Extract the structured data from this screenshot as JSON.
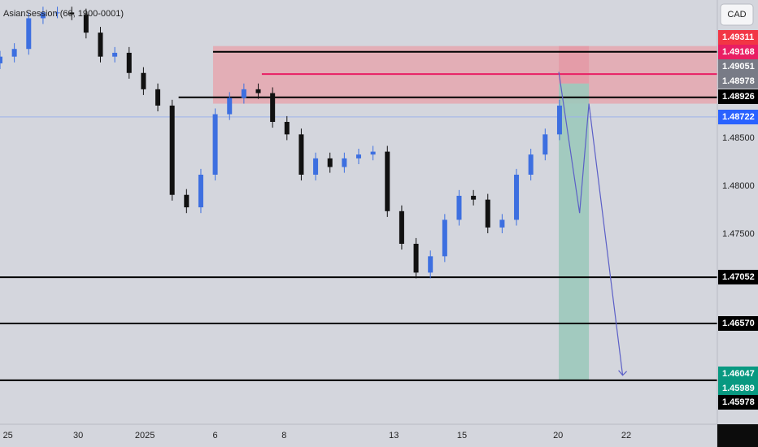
{
  "chart_data": {
    "type": "candlestick",
    "title": "AsianSession (60, 1900-0001)",
    "currency": "CAD",
    "x": [
      0,
      2,
      4,
      6,
      8,
      10,
      12,
      14,
      16,
      18,
      20,
      22,
      24,
      26,
      28,
      30,
      32,
      34,
      36,
      38,
      40,
      42,
      44,
      46,
      48,
      50,
      52,
      54,
      56,
      58,
      60,
      62,
      64,
      66,
      68,
      70,
      72,
      74,
      76,
      78
    ],
    "open": [
      1.4928,
      1.4935,
      1.4943,
      1.4975,
      1.4981,
      1.4981,
      1.4979,
      1.496,
      1.4935,
      1.4939,
      1.4918,
      1.4901,
      1.4884,
      1.4791,
      1.4778,
      1.4812,
      1.4875,
      1.4892,
      1.4901,
      1.4897,
      1.4867,
      1.4854,
      1.4812,
      1.4829,
      1.482,
      1.4829,
      1.4833,
      1.4836,
      1.4774,
      1.474,
      1.471,
      1.4727,
      1.4765,
      1.479,
      1.4786,
      1.4757,
      1.4765,
      1.4812,
      1.4833,
      1.4854
    ],
    "high": [
      1.4941,
      1.4949,
      1.4981,
      1.4987,
      1.4987,
      1.4987,
      1.4985,
      1.4966,
      1.4945,
      1.4945,
      1.4924,
      1.4907,
      1.489,
      1.4797,
      1.4818,
      1.4881,
      1.4898,
      1.4907,
      1.4907,
      1.4903,
      1.4873,
      1.486,
      1.4835,
      1.4835,
      1.4835,
      1.4839,
      1.4842,
      1.4842,
      1.478,
      1.4746,
      1.4733,
      1.4771,
      1.4796,
      1.4796,
      1.4792,
      1.4771,
      1.4818,
      1.4839,
      1.486,
      1.489
    ],
    "low": [
      1.4922,
      1.4929,
      1.4937,
      1.4969,
      1.4975,
      1.4973,
      1.4954,
      1.4929,
      1.4929,
      1.4912,
      1.4895,
      1.4878,
      1.4785,
      1.4772,
      1.4772,
      1.4806,
      1.4869,
      1.4886,
      1.4891,
      1.4861,
      1.4848,
      1.4806,
      1.4806,
      1.4814,
      1.4814,
      1.4823,
      1.4827,
      1.4768,
      1.4734,
      1.4704,
      1.4704,
      1.4721,
      1.4759,
      1.478,
      1.4751,
      1.4751,
      1.4759,
      1.4806,
      1.4827,
      1.4848
    ],
    "close": [
      1.4935,
      1.4943,
      1.4975,
      1.4981,
      1.4981,
      1.4979,
      1.496,
      1.4935,
      1.4939,
      1.4918,
      1.4901,
      1.4884,
      1.4791,
      1.4778,
      1.4812,
      1.4875,
      1.4892,
      1.4901,
      1.4897,
      1.4867,
      1.4854,
      1.4812,
      1.4829,
      1.482,
      1.4829,
      1.4833,
      1.4836,
      1.4774,
      1.474,
      1.471,
      1.4727,
      1.4765,
      1.479,
      1.4786,
      1.4757,
      1.4765,
      1.4812,
      1.4833,
      1.4854,
      1.4884
    ],
    "up_color": "#3d6fe0",
    "down_color": "#111111",
    "xlim": [
      0,
      100
    ],
    "ylim": [
      1.4552,
      1.4994
    ],
    "xticks": [
      {
        "value": 1.1,
        "label": "25"
      },
      {
        "value": 10.9,
        "label": "30"
      },
      {
        "value": 20.2,
        "label": "2025"
      },
      {
        "value": 30,
        "label": "6"
      },
      {
        "value": 39.6,
        "label": "8"
      },
      {
        "value": 54.9,
        "label": "13"
      },
      {
        "value": 64.4,
        "label": "15"
      },
      {
        "value": 77.8,
        "label": "20"
      },
      {
        "value": 87.3,
        "label": "22"
      }
    ],
    "yticks": [
      {
        "value": 1.485,
        "label": "1.48500"
      },
      {
        "value": 1.48,
        "label": "1.48000"
      },
      {
        "value": 1.475,
        "label": "1.47500"
      }
    ],
    "zone": {
      "x0": 29.7,
      "bottom": 1.4886,
      "top": 1.4946,
      "color": "#e8a0a8"
    },
    "levels": [
      {
        "value": 1.494,
        "x0": 29.7,
        "color": "#000000"
      },
      {
        "value": 1.49168,
        "x0": 36.5,
        "color": "#e91e63"
      },
      {
        "value": 1.48926,
        "x0": 24.9,
        "color": "#000000"
      },
      {
        "value": 1.48722,
        "x0": 0,
        "color": "#9db2ea"
      },
      {
        "value": 1.47052,
        "x0": 0,
        "color": "#000000"
      },
      {
        "value": 1.4657,
        "x0": 0,
        "color": "#000000"
      },
      {
        "value": 1.45978,
        "x0": 0,
        "color": "#000000"
      }
    ],
    "price_labels": [
      {
        "value": 1.49311,
        "label": "1.49311",
        "color": "#f23645"
      },
      {
        "value": 1.49168,
        "label": "1.49168",
        "color": "#e91e63"
      },
      {
        "value": 1.49051,
        "label": "1.49051",
        "color": "#787b86"
      },
      {
        "value": 1.48978,
        "label": "1.48978",
        "color": "#787b86"
      },
      {
        "value": 1.48926,
        "label": "1.48926",
        "color": "#000000"
      },
      {
        "value": 1.48722,
        "label": "1.48722",
        "color": "#2962ff"
      },
      {
        "value": 1.47052,
        "label": "1.47052",
        "color": "#000000"
      },
      {
        "value": 1.4657,
        "label": "1.46570",
        "color": "#000000"
      },
      {
        "value": 1.46047,
        "label": "1.46047",
        "color": "#089981"
      },
      {
        "value": 1.45989,
        "label": "1.45989",
        "color": "#089981"
      },
      {
        "value": 1.45978,
        "label": "1.45978",
        "color": "#000000"
      }
    ],
    "position": {
      "x0": 77.9,
      "x1": 82.1,
      "stop": 1.4946,
      "entry": 1.4907,
      "target": 1.4598,
      "stop_color": "#e39aa6",
      "target_color": "#9cc9bb"
    },
    "projection": {
      "x": [
        77.9,
        80.8,
        82.1,
        86.8
      ],
      "y": [
        1.4919,
        1.4772,
        1.4886,
        1.4603
      ],
      "color": "#5b5fc7"
    }
  }
}
